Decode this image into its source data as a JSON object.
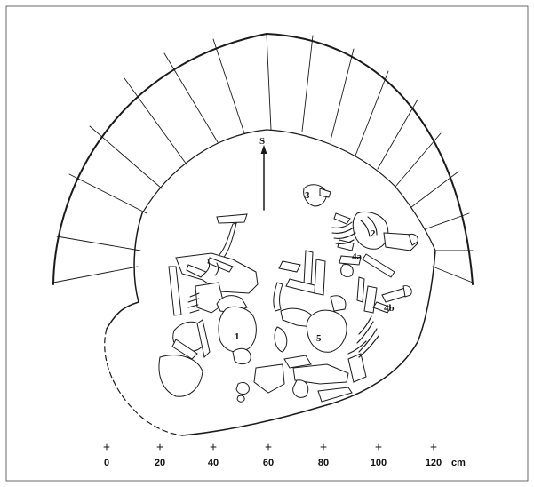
{
  "orientation_label": "S",
  "individual_labels": [
    "1",
    "2",
    "3",
    "4a",
    "4b",
    "5"
  ],
  "scale": {
    "ticks": [
      "0",
      "20",
      "40",
      "60",
      "80",
      "100",
      "120"
    ],
    "unit": "cm"
  }
}
